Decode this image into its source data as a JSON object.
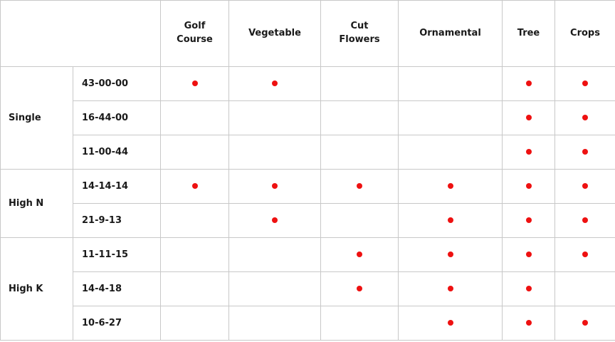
{
  "theme": {
    "dot_color": "#ee1111",
    "border_color": "#c8c8c8",
    "text_color": "#1a1a1a",
    "background_color": "#ffffff"
  },
  "chart_data": {
    "type": "table",
    "description": "Fertilizer formula application matrix; red dot marks that the formula applies to the use category",
    "columns": [
      "Golf Course",
      "Vegetable",
      "Cut Flowers",
      "Ornamental",
      "Tree",
      "Crops"
    ],
    "marker": "red-dot",
    "row_groups": [
      {
        "label": "Single",
        "rows": [
          {
            "formula": "43-00-00",
            "applications": [
              "Golf Course",
              "Vegetable",
              "Tree",
              "Crops"
            ]
          },
          {
            "formula": "16-44-00",
            "applications": [
              "Tree",
              "Crops"
            ]
          },
          {
            "formula": "11-00-44",
            "applications": [
              "Tree",
              "Crops"
            ]
          }
        ]
      },
      {
        "label": "High N",
        "rows": [
          {
            "formula": "14-14-14",
            "applications": [
              "Golf Course",
              "Vegetable",
              "Cut Flowers",
              "Ornamental",
              "Tree",
              "Crops"
            ]
          },
          {
            "formula": "21-9-13",
            "applications": [
              "Vegetable",
              "Ornamental",
              "Tree",
              "Crops"
            ]
          }
        ]
      },
      {
        "label": "High K",
        "rows": [
          {
            "formula": "11-11-15",
            "applications": [
              "Cut Flowers",
              "Ornamental",
              "Tree",
              "Crops"
            ]
          },
          {
            "formula": "14-4-18",
            "applications": [
              "Cut Flowers",
              "Ornamental",
              "Tree"
            ]
          },
          {
            "formula": "10-6-27",
            "applications": [
              "Ornamental",
              "Tree",
              "Crops"
            ]
          }
        ]
      }
    ]
  }
}
